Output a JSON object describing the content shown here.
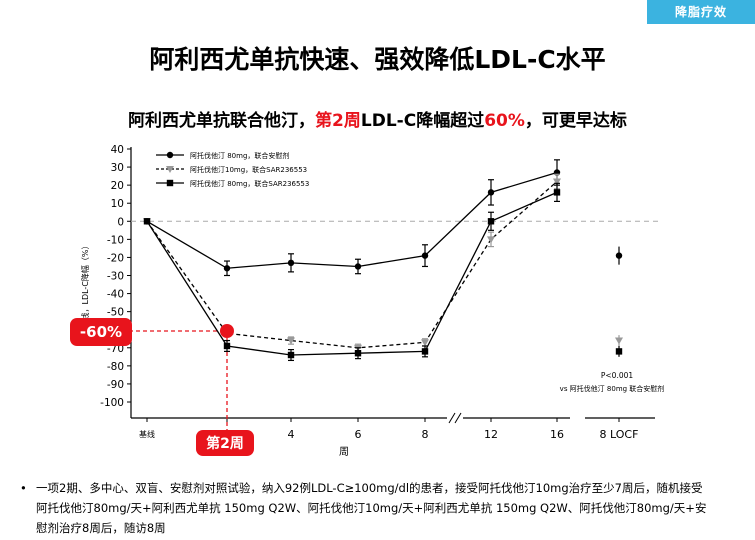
{
  "header": {
    "tag": "降脂疗效",
    "title": "阿利西尤单抗快速、强效降低LDL-C水平",
    "subtitle_part1": "阿利西尤单抗联合他汀，",
    "subtitle_highlight1": "第2周",
    "subtitle_part2": "LDL-C降幅超过",
    "subtitle_highlight2": "60%",
    "subtitle_part3": "，可更早达标"
  },
  "chart_data": {
    "type": "line",
    "ylabel": "基线，LDL-C降幅（%）",
    "xlabel": "周",
    "ylim": [
      -100,
      40
    ],
    "yticks": [
      "40",
      "30",
      "20",
      "10",
      "0",
      "-10",
      "-20",
      "-30",
      "-40",
      "-50",
      "-60",
      "-70",
      "-80",
      "-90",
      "-100"
    ],
    "xtick_labels": [
      "基线",
      "2",
      "4",
      "6",
      "8",
      "12",
      "16",
      "8 LOCF"
    ],
    "x": [
      "基线",
      "2",
      "4",
      "6",
      "8",
      "12",
      "16"
    ],
    "series": [
      {
        "name": "阿托伐他汀 80mg，联合安慰剂",
        "marker": "circle",
        "line": "solid",
        "values": [
          0,
          -26,
          -23,
          -25,
          -19,
          16,
          27
        ],
        "err": [
          0,
          4,
          5,
          4,
          6,
          7,
          7
        ],
        "locf": -19,
        "locf_err": 5
      },
      {
        "name": "阿托伐他汀10mg，联合SAR236553",
        "marker": "triangle-down",
        "line": "dotted",
        "color": "#999999",
        "values": [
          0,
          -62,
          -66,
          -70,
          -67,
          -10,
          22
        ],
        "err": [
          0,
          2,
          2,
          2,
          2,
          4,
          4
        ],
        "locf": -66,
        "locf_err": 3
      },
      {
        "name": "阿托伐他汀 80mg，联合SAR236553",
        "marker": "square",
        "line": "solid",
        "values": [
          0,
          -69,
          -74,
          -73,
          -72,
          0,
          16
        ],
        "err": [
          0,
          3,
          3,
          3,
          3,
          5,
          5
        ],
        "locf": -72,
        "locf_err": 3
      }
    ],
    "annotations": {
      "callout_value": "-60%",
      "callout_week": "第2周",
      "pvalue": "P<0.001",
      "pvalue_note": "vs 阿托伐他汀 80mg 联合安慰剂"
    },
    "reference_line": 0,
    "legend_position": "top-left"
  },
  "footnote": {
    "bullet": "•",
    "text": "一项2期、多中心、双盲、安慰剂对照试验，纳入92例LDL-C≥100mg/dl的患者，接受阿托伐他汀10mg治疗至少7周后，随机接受阿托伐他汀80mg/天+阿利西尤单抗 150mg Q2W、阿托伐他汀10mg/天+阿利西尤单抗 150mg Q2W、阿托伐他汀80mg/天+安慰剂治疗8周后，随访8周"
  }
}
